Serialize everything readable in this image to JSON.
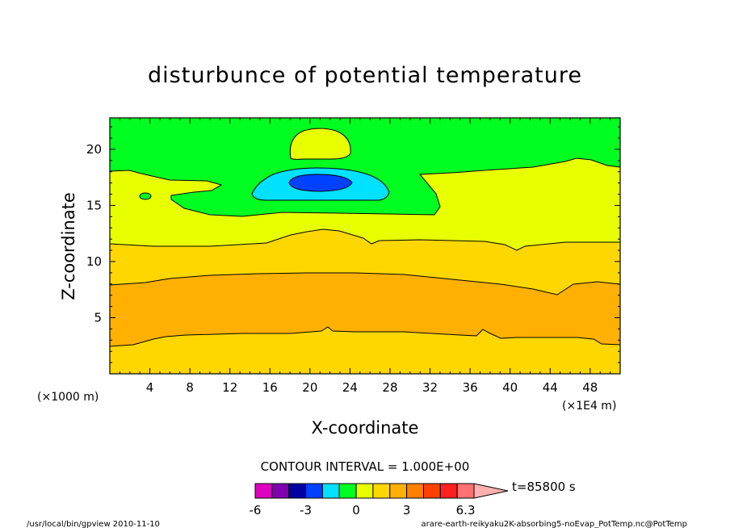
{
  "chart_data": {
    "type": "contour",
    "title": "disturbunce of potential temperature",
    "xlabel": "X-coordinate",
    "ylabel": "Z-coordinate",
    "x_unit_left": "(×1000 m)",
    "x_unit_right": "(×1E4 m)",
    "xlim": [
      0,
      51
    ],
    "ylim": [
      0,
      22.8
    ],
    "x_ticks": [
      4,
      8,
      12,
      16,
      20,
      24,
      28,
      32,
      36,
      40,
      44,
      48
    ],
    "y_ticks": [
      5,
      10,
      15,
      20
    ],
    "contour_interval_label": "CONTOUR INTERVAL = 1.000E+00",
    "time_label": "t=85800 s",
    "levels": [
      -6,
      -5,
      -4,
      -3,
      -2,
      -1,
      0,
      1,
      2,
      3,
      4,
      5,
      6,
      6.3
    ],
    "colorbar_labels": [
      "-6",
      "-3",
      "0",
      "3",
      "6.3"
    ],
    "colorbar_colors": [
      "#e000c0",
      "#8000b0",
      "#0000a0",
      "#0040ff",
      "#00e0ff",
      "#00ff20",
      "#e8ff00",
      "#ffd700",
      "#ffb000",
      "#ff8000",
      "#ff4000",
      "#ff2020",
      "#ff7070"
    ],
    "colorbar_overflow_color": "#ffb0b0",
    "regions": [
      {
        "name": "0 to 1",
        "color": "#e8ff00",
        "description": "z from about 11.5 to 18 km across the domain"
      },
      {
        "name": "-1 to 0",
        "color": "#00ff20",
        "description": "z above about 18 km, and a lobe extending down to about 14.5 km near x=10-34"
      },
      {
        "name": "-2 to -1",
        "color": "#00e0ff",
        "description": "blob near x=14-27, z=15.6-18.2"
      },
      {
        "name": "-3 to -2",
        "color": "#0040ff",
        "description": "core near x=18-24, z=16.5-17.8"
      },
      {
        "name": "0 to 1 (upper)",
        "color": "#e8ff00",
        "description": "bubble near x=18-24, z=19-21.8"
      },
      {
        "name": "1 to 2",
        "color": "#ffd700",
        "description": "z from about 8 to 11.5 km, and below about 3 km"
      },
      {
        "name": "2 to 3",
        "color": "#ffb000",
        "description": "band from about 3 to 9 km"
      }
    ]
  },
  "footer": {
    "left": "/usr/local/bin/gpview  2010-11-10",
    "right": "arare-earth-reikyaku2K-absorbing5-noEvap_PotTemp.nc@PotTemp"
  }
}
